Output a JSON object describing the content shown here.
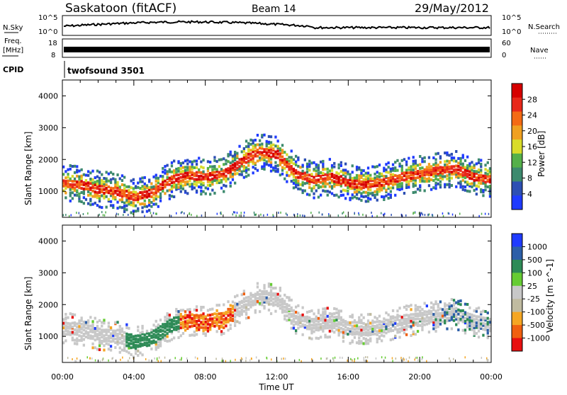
{
  "header": {
    "station": "Saskatoon (fitACF)",
    "beam": "Beam 14",
    "date": "29/May/2012"
  },
  "status_panels": {
    "nsky_label": "N.Sky",
    "nsky_ticks": [
      "10^5",
      "10^0"
    ],
    "nsearch_label": "N.Search",
    "freq_label": "Freq.",
    "freq_unit": "[MHz]",
    "freq_ticks": [
      "18",
      "8"
    ],
    "nave_label": "Nave",
    "nave_ticks": [
      "60",
      "0"
    ],
    "cpid_label": "CPID",
    "cpid_value": "twofsound 3501"
  },
  "colors": {
    "power": [
      "#1f3bff",
      "#2d4fb3",
      "#3d8a6e",
      "#55b04a",
      "#d9dc2a",
      "#f0a020",
      "#f46a14",
      "#e8281a",
      "#d60000"
    ],
    "velocity": [
      "#1f3bff",
      "#2d5fa8",
      "#2e8b57",
      "#66cc33",
      "#c8c8c8",
      "#c0bba0",
      "#f5a623",
      "#f06010",
      "#e81010"
    ]
  },
  "chart_data": [
    {
      "type": "heatmap",
      "title": "",
      "xlabel": "",
      "ylabel": "Slant Range [km]",
      "x_ticks": [
        "00:00",
        "04:00",
        "08:00",
        "12:00",
        "16:00",
        "20:00",
        "00:00"
      ],
      "x_range_hours": [
        0,
        24
      ],
      "y_ticks": [
        1000,
        2000,
        3000,
        4000
      ],
      "ylim": [
        180,
        4500
      ],
      "colorbar_label": "Power [dB]",
      "colorbar_ticks": [
        "4",
        "8",
        "12",
        "16",
        "20",
        "24",
        "28"
      ],
      "colorbar_range": [
        0,
        30
      ],
      "echo_band": {
        "hours": [
          0,
          1,
          2,
          3,
          4,
          5,
          6,
          7,
          8,
          9,
          10,
          11,
          12,
          13,
          14,
          15,
          16,
          17,
          18,
          19,
          20,
          21,
          22,
          23,
          24
        ],
        "center_km": [
          1300,
          1250,
          1100,
          1050,
          850,
          1000,
          1400,
          1550,
          1500,
          1600,
          2000,
          2300,
          2200,
          1600,
          1400,
          1500,
          1300,
          1250,
          1350,
          1500,
          1600,
          1700,
          1750,
          1500,
          1400
        ]
      }
    },
    {
      "type": "heatmap",
      "title": "",
      "xlabel": "Time UT",
      "ylabel": "Slant Range [km]",
      "x_ticks": [
        "00:00",
        "04:00",
        "08:00",
        "12:00",
        "16:00",
        "20:00",
        "00:00"
      ],
      "x_range_hours": [
        0,
        24
      ],
      "y_ticks": [
        1000,
        2000,
        3000,
        4000
      ],
      "ylim": [
        180,
        4500
      ],
      "colorbar_label": "Velocity [m s^-1]",
      "colorbar_ticks": [
        "1000",
        "500",
        "100",
        "25",
        "-25",
        "-100",
        "-500",
        "-1000"
      ]
    }
  ]
}
